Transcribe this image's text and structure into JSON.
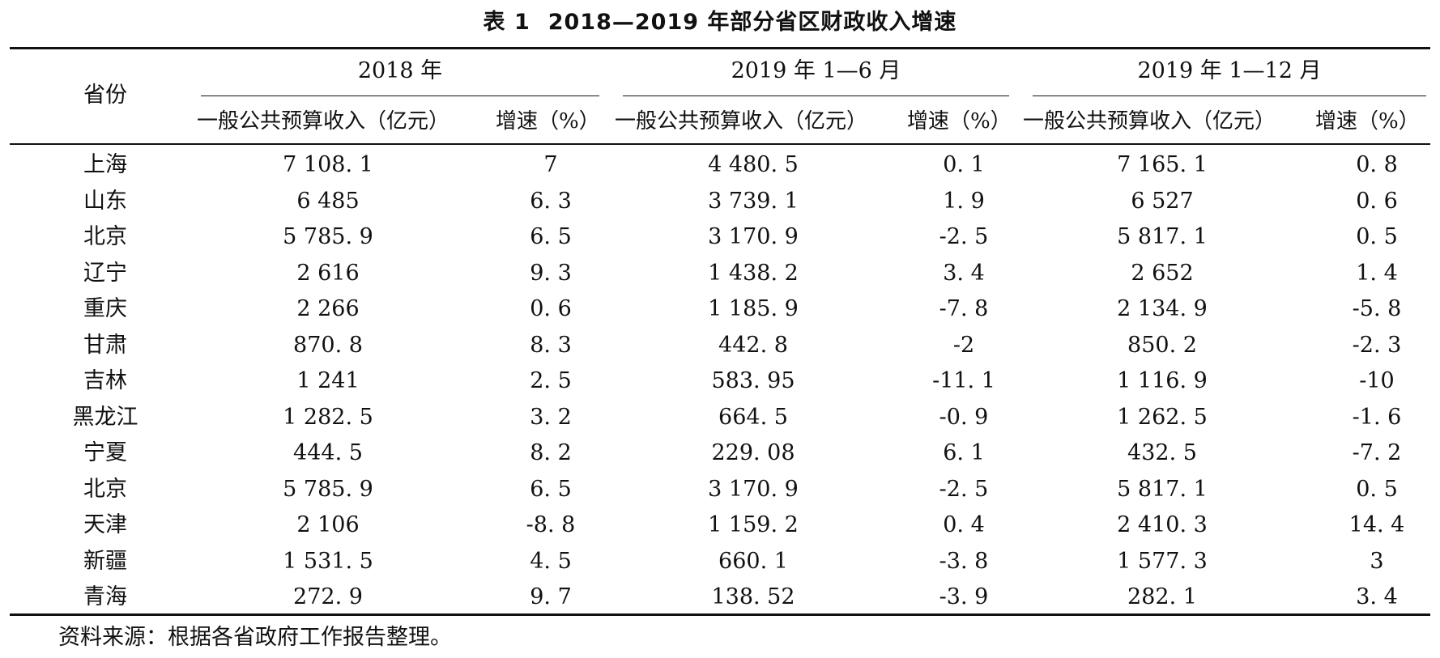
{
  "title": {
    "number": "表 1",
    "text": "2018—2019 年部分省区财政收入增速"
  },
  "header": {
    "province": "省份",
    "groups": [
      "2018 年",
      "2019 年 1—6 月",
      "2019 年 1—12 月"
    ],
    "revenue_label": "一般公共预算收入（亿元）",
    "growth_label": "增速（%）"
  },
  "rows": [
    {
      "province": "上海",
      "v": [
        "7 108. 1",
        "7",
        "4 480. 5",
        "0. 1",
        "7 165. 1",
        "0. 8"
      ]
    },
    {
      "province": "山东",
      "v": [
        "6 485",
        "6. 3",
        "3 739. 1",
        "1. 9",
        "6 527",
        "0. 6"
      ]
    },
    {
      "province": "北京",
      "v": [
        "5 785. 9",
        "6. 5",
        "3 170. 9",
        "-2. 5",
        "5 817. 1",
        "0. 5"
      ]
    },
    {
      "province": "辽宁",
      "v": [
        "2 616",
        "9. 3",
        "1 438. 2",
        "3. 4",
        "2 652",
        "1. 4"
      ]
    },
    {
      "province": "重庆",
      "v": [
        "2 266",
        "0. 6",
        "1 185. 9",
        "-7. 8",
        "2 134. 9",
        "-5. 8"
      ]
    },
    {
      "province": "甘肃",
      "v": [
        "870. 8",
        "8. 3",
        "442. 8",
        "-2",
        "850. 2",
        "-2. 3"
      ]
    },
    {
      "province": "吉林",
      "v": [
        "1 241",
        "2. 5",
        "583. 95",
        "-11. 1",
        "1 116. 9",
        "-10"
      ]
    },
    {
      "province": "黑龙江",
      "v": [
        "1 282. 5",
        "3. 2",
        "664. 5",
        "-0. 9",
        "1 262. 5",
        "-1. 6"
      ]
    },
    {
      "province": "宁夏",
      "v": [
        "444. 5",
        "8. 2",
        "229. 08",
        "6. 1",
        "432. 5",
        "-7. 2"
      ]
    },
    {
      "province": "北京",
      "v": [
        "5 785. 9",
        "6. 5",
        "3 170. 9",
        "-2. 5",
        "5 817. 1",
        "0. 5"
      ]
    },
    {
      "province": "天津",
      "v": [
        "2 106",
        "-8. 8",
        "1 159. 2",
        "0. 4",
        "2 410. 3",
        "14. 4"
      ]
    },
    {
      "province": "新疆",
      "v": [
        "1 531. 5",
        "4. 5",
        "660. 1",
        "-3. 8",
        "1 577. 3",
        "3"
      ]
    },
    {
      "province": "青海",
      "v": [
        "272. 9",
        "9. 7",
        "138. 52",
        "-3. 9",
        "282. 1",
        "3. 4"
      ]
    }
  ],
  "note": "资料来源：根据各省政府工作报告整理。"
}
